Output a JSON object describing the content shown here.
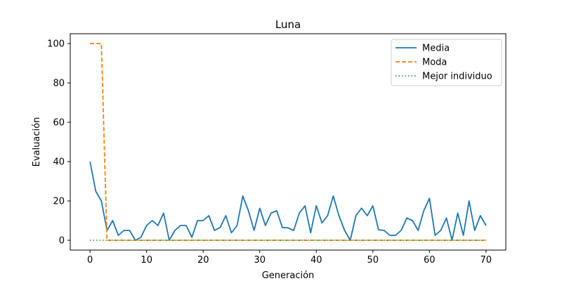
{
  "chart_data": {
    "type": "line",
    "title": "Luna",
    "xlabel": "Generación",
    "ylabel": "Evaluación",
    "xlim": [
      -3.5,
      73.5
    ],
    "ylim": [
      -5,
      105
    ],
    "xticks": [
      0,
      10,
      20,
      30,
      40,
      50,
      60,
      70
    ],
    "yticks": [
      0,
      20,
      40,
      60,
      80,
      100
    ],
    "grid": false,
    "legend_position": "top-right",
    "series": [
      {
        "name": "Media",
        "color": "#1f77b4",
        "style": "solid",
        "x": [
          0,
          1,
          2,
          3,
          4,
          5,
          6,
          7,
          8,
          9,
          10,
          11,
          12,
          13,
          14,
          15,
          16,
          17,
          18,
          19,
          20,
          21,
          22,
          23,
          24,
          25,
          26,
          27,
          28,
          29,
          30,
          31,
          32,
          33,
          34,
          35,
          36,
          37,
          38,
          39,
          40,
          41,
          42,
          43,
          44,
          45,
          46,
          47,
          48,
          49,
          50,
          51,
          52,
          53,
          54,
          55,
          56,
          57,
          58,
          59,
          60,
          61,
          62,
          63,
          64,
          65,
          66,
          67,
          68,
          69,
          70
        ],
        "y": [
          40,
          25,
          20,
          5,
          10,
          2.5,
          5,
          5,
          0,
          1.5,
          7.5,
          10,
          7.5,
          13.8,
          0,
          5,
          7.5,
          7.5,
          1.5,
          10,
          10,
          12.5,
          5,
          6.5,
          12.5,
          3.8,
          7.5,
          22.5,
          15,
          5,
          16.3,
          7.5,
          13.8,
          15,
          6.5,
          6.3,
          5,
          13.8,
          17.5,
          3.8,
          17.5,
          8.8,
          12.5,
          22.5,
          12.5,
          5,
          0,
          12.5,
          16.3,
          12.5,
          17.5,
          5.3,
          5,
          2.5,
          2.5,
          5,
          11.3,
          10,
          5,
          15,
          21.3,
          2.5,
          5,
          11.3,
          0,
          13.8,
          2.5,
          20,
          5,
          12.5,
          7.5
        ]
      },
      {
        "name": "Moda",
        "color": "#ff7f0e",
        "style": "dashed",
        "x": [
          0,
          1,
          2,
          3,
          4,
          5,
          6,
          7,
          8,
          9,
          10,
          11,
          12,
          13,
          14,
          15,
          16,
          17,
          18,
          19,
          20,
          21,
          22,
          23,
          24,
          25,
          26,
          27,
          28,
          29,
          30,
          31,
          32,
          33,
          34,
          35,
          36,
          37,
          38,
          39,
          40,
          41,
          42,
          43,
          44,
          45,
          46,
          47,
          48,
          49,
          50,
          51,
          52,
          53,
          54,
          55,
          56,
          57,
          58,
          59,
          60,
          61,
          62,
          63,
          64,
          65,
          66,
          67,
          68,
          69,
          70
        ],
        "y": [
          100,
          100,
          100,
          0,
          0,
          0,
          0,
          0,
          0,
          0,
          0,
          0,
          0,
          0,
          0,
          0,
          0,
          0,
          0,
          0,
          0,
          0,
          0,
          0,
          0,
          0,
          0,
          0,
          0,
          0,
          0,
          0,
          0,
          0,
          0,
          0,
          0,
          0,
          0,
          0,
          0,
          0,
          0,
          0,
          0,
          0,
          0,
          0,
          0,
          0,
          0,
          0,
          0,
          0,
          0,
          0,
          0,
          0,
          0,
          0,
          0,
          0,
          0,
          0,
          0,
          0,
          0,
          0,
          0,
          0,
          0
        ]
      },
      {
        "name": "Mejor individuo",
        "color": "#2ca02c",
        "style": "dotted",
        "x": [
          0,
          1,
          2,
          3,
          4,
          5,
          6,
          7,
          8,
          9,
          10,
          11,
          12,
          13,
          14,
          15,
          16,
          17,
          18,
          19,
          20,
          21,
          22,
          23,
          24,
          25,
          26,
          27,
          28,
          29,
          30,
          31,
          32,
          33,
          34,
          35,
          36,
          37,
          38,
          39,
          40,
          41,
          42,
          43,
          44,
          45,
          46,
          47,
          48,
          49,
          50,
          51,
          52,
          53,
          54,
          55,
          56,
          57,
          58,
          59,
          60,
          61,
          62,
          63,
          64,
          65,
          66,
          67,
          68,
          69,
          70
        ],
        "y": [
          0,
          0,
          0,
          0,
          0,
          0,
          0,
          0,
          0,
          0,
          0,
          0,
          0,
          0,
          0,
          0,
          0,
          0,
          0,
          0,
          0,
          0,
          0,
          0,
          0,
          0,
          0,
          0,
          0,
          0,
          0,
          0,
          0,
          0,
          0,
          0,
          0,
          0,
          0,
          0,
          0,
          0,
          0,
          0,
          0,
          0,
          0,
          0,
          0,
          0,
          0,
          0,
          0,
          0,
          0,
          0,
          0,
          0,
          0,
          0,
          0,
          0,
          0,
          0,
          0,
          0,
          0,
          0,
          0,
          0,
          0
        ]
      }
    ]
  }
}
